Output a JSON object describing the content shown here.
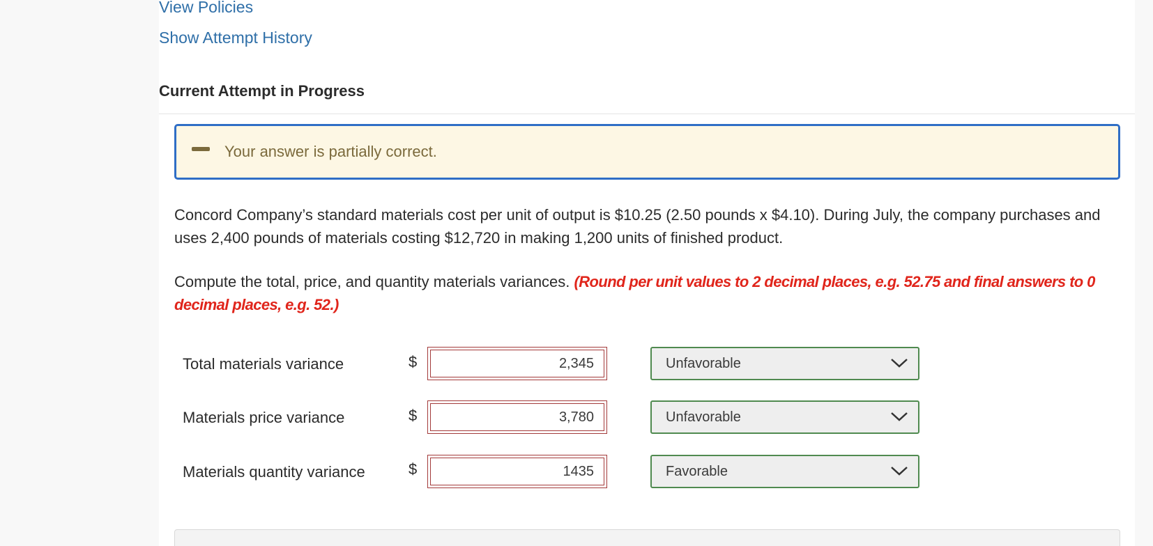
{
  "links": {
    "view_policies": "View Policies",
    "show_attempt_history": "Show Attempt History"
  },
  "section_title": "Current Attempt in Progress",
  "feedback": {
    "message": "Your answer is partially correct.",
    "icon": "dash-icon",
    "border_color": "#2f6ec6",
    "background": "#fdf7e4"
  },
  "problem_text": "Concord Company’s standard materials cost per unit of output is $10.25 (2.50 pounds x $4.10). During July, the company purchases and uses 2,400 pounds of materials costing $12,720 in making 1,200 units of finished product.",
  "instruction": {
    "text": "Compute the total, price, and quantity materials variances. ",
    "note": "(Round per unit values to 2 decimal places, e.g. 52.75 and final answers to 0 decimal places, e.g. 52.)"
  },
  "rows": [
    {
      "label": "Total materials variance",
      "currency": "$",
      "value": "2,345",
      "selection": "Unfavorable"
    },
    {
      "label": "Materials price variance",
      "currency": "$",
      "value": "3,780",
      "selection": "Unfavorable"
    },
    {
      "label": "Materials quantity variance",
      "currency": "$",
      "value": "1435",
      "selection": "Favorable"
    }
  ],
  "colors": {
    "link": "#2f6fa8",
    "error_note": "#e0251b",
    "incorrect_border": "#a33a3a",
    "select_border": "#4f8a4f"
  }
}
